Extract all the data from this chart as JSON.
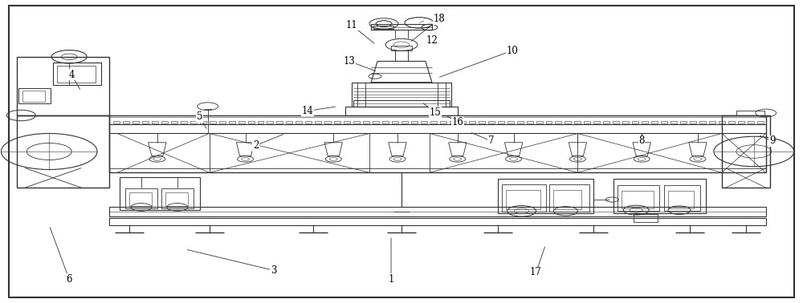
{
  "figure_width": 10.0,
  "figure_height": 3.78,
  "dpi": 100,
  "background_color": "#ffffff",
  "line_color": "#333333",
  "line_width": 0.7,
  "labels_data": [
    [
      1,
      0.487,
      0.075,
      0.487,
      0.22
    ],
    [
      2,
      0.318,
      0.52,
      0.355,
      0.56
    ],
    [
      3,
      0.34,
      0.105,
      0.23,
      0.175
    ],
    [
      4,
      0.088,
      0.755,
      0.1,
      0.7
    ],
    [
      5,
      0.248,
      0.615,
      0.258,
      0.57
    ],
    [
      6,
      0.085,
      0.075,
      0.06,
      0.255
    ],
    [
      7,
      0.612,
      0.535,
      0.585,
      0.565
    ],
    [
      8,
      0.8,
      0.535,
      0.8,
      0.565
    ],
    [
      9,
      0.963,
      0.535,
      0.945,
      0.555
    ],
    [
      10,
      0.638,
      0.835,
      0.545,
      0.745
    ],
    [
      11,
      0.438,
      0.92,
      0.468,
      0.855
    ],
    [
      12,
      0.538,
      0.87,
      0.537,
      0.85
    ],
    [
      13,
      0.435,
      0.8,
      0.47,
      0.765
    ],
    [
      14,
      0.383,
      0.635,
      0.42,
      0.65
    ],
    [
      15,
      0.542,
      0.63,
      0.525,
      0.665
    ],
    [
      16,
      0.57,
      0.598,
      0.555,
      0.62
    ],
    [
      17,
      0.668,
      0.098,
      0.68,
      0.19
    ],
    [
      18,
      0.547,
      0.94,
      0.51,
      0.862
    ]
  ]
}
